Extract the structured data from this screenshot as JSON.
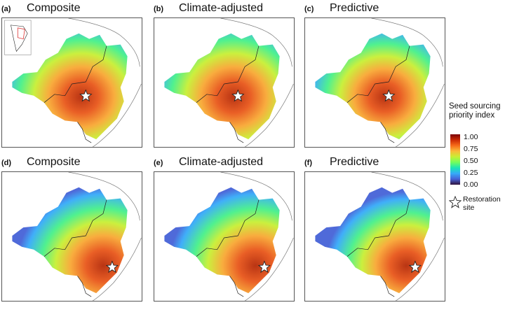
{
  "panels": [
    {
      "label": "(a)",
      "title": "Composite",
      "hotspot": "center",
      "row": 1
    },
    {
      "label": "(b)",
      "title": "Climate-adjusted",
      "hotspot": "center",
      "row": 1
    },
    {
      "label": "(c)",
      "title": "Predictive",
      "hotspot": "center",
      "row": 1
    },
    {
      "label": "(d)",
      "title": "Composite",
      "hotspot": "east",
      "row": 2
    },
    {
      "label": "(e)",
      "title": "Climate-adjusted",
      "hotspot": "east",
      "row": 2
    },
    {
      "label": "(f)",
      "title": "Predictive",
      "hotspot": "east",
      "row": 2
    }
  ],
  "legend": {
    "title": "Seed sourcing priority index",
    "ticks": [
      "1.00",
      "0.75",
      "0.50",
      "0.25",
      "0.00"
    ],
    "colormap": [
      "#30123b",
      "#4662d7",
      "#36aaf9",
      "#1ae4b6",
      "#72fe5e",
      "#c8ef34",
      "#faba39",
      "#f66b19",
      "#ca2a04",
      "#7a0403"
    ],
    "restoration_label": "Restoration site",
    "restoration_icon": "star-icon"
  }
}
